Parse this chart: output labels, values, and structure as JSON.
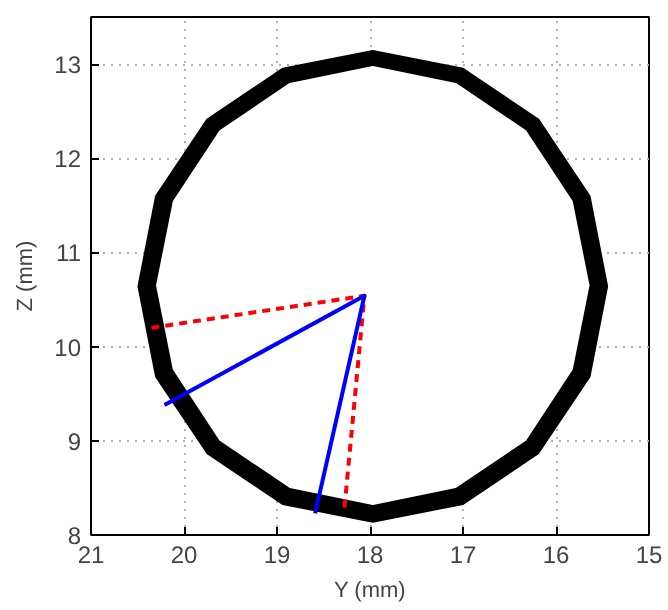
{
  "chart_data": {
    "type": "line",
    "xlabel": "Y (mm)",
    "ylabel": "Z (mm)",
    "xlim": [
      21,
      15
    ],
    "ylim": [
      8,
      13.5
    ],
    "xticks": [
      21,
      20,
      19,
      18,
      17,
      16,
      15
    ],
    "yticks": [
      8,
      9,
      10,
      11,
      12,
      13
    ],
    "grid": true,
    "series": [
      {
        "type": "area",
        "color": "#000000",
        "x": [
          20.49,
          20.3,
          19.75,
          18.94,
          17.97,
          17.0,
          16.19,
          15.64,
          15.45,
          15.64,
          16.19,
          17.0,
          17.97,
          18.94,
          19.75,
          20.3,
          20.49
        ],
        "values": [
          10.64,
          11.6,
          12.41,
          12.95,
          13.14,
          12.95,
          12.41,
          11.6,
          10.64,
          9.68,
          8.87,
          8.33,
          8.14,
          8.33,
          8.87,
          9.68,
          10.64
        ]
      },
      {
        "type": "area",
        "color": "#ffffff",
        "x": [
          20.29,
          20.11,
          19.61,
          18.86,
          17.97,
          17.08,
          16.33,
          15.83,
          15.65,
          15.83,
          16.33,
          17.08,
          17.97,
          18.86,
          19.61,
          20.11,
          20.29
        ],
        "values": [
          10.65,
          11.54,
          12.29,
          12.79,
          12.97,
          12.79,
          12.29,
          11.54,
          10.65,
          9.76,
          9.01,
          8.51,
          8.33,
          8.51,
          9.01,
          9.76,
          10.65
        ]
      },
      {
        "color": "#ff0000",
        "line_style": "dashed",
        "x": [
          20.35,
          18.06,
          18.28
        ],
        "values": [
          10.2,
          10.54,
          8.23
        ]
      },
      {
        "color": "#0000ff",
        "line_style": "solid",
        "x": [
          20.21,
          18.06,
          18.59
        ],
        "values": [
          9.38,
          10.54,
          8.23
        ]
      }
    ]
  }
}
